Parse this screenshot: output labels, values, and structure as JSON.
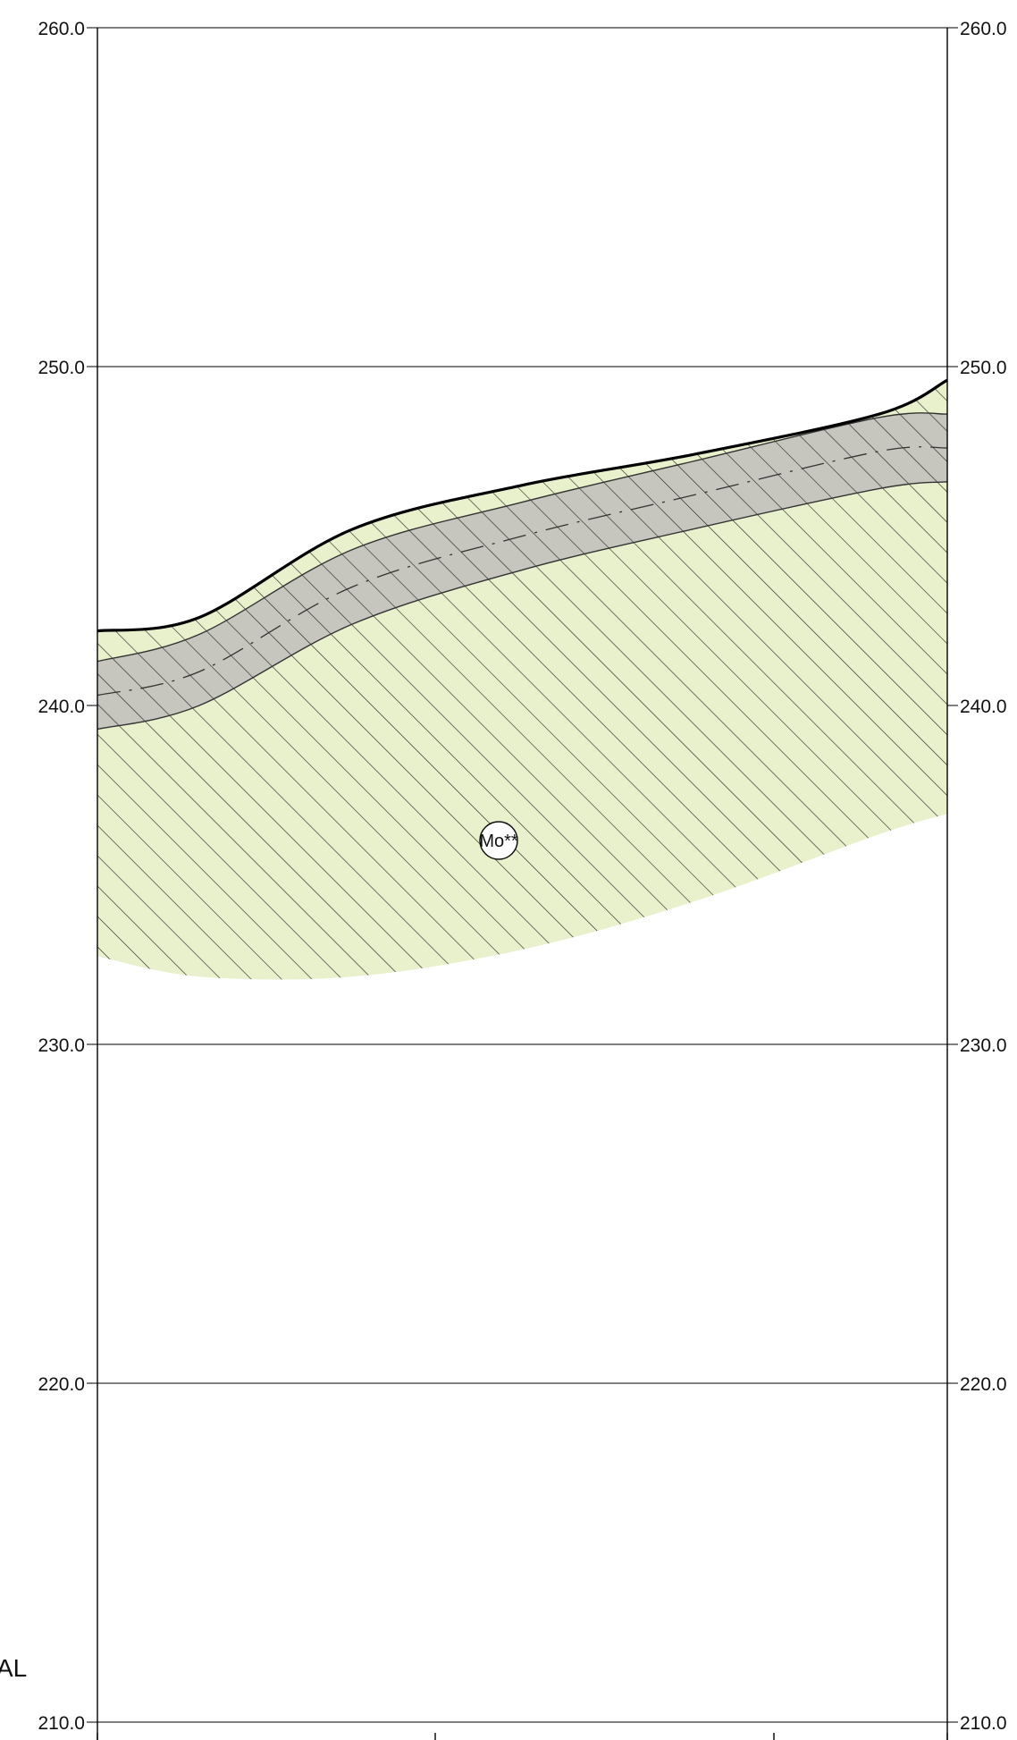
{
  "elevation_axis": {
    "ticks": [
      {
        "value": 260,
        "label": "260.0"
      },
      {
        "value": 250,
        "label": "250.0"
      },
      {
        "value": 240,
        "label": "240.0"
      },
      {
        "value": 230,
        "label": "230.0"
      },
      {
        "value": 220,
        "label": "220.0"
      },
      {
        "value": 210,
        "label": "210.0"
      }
    ],
    "range": [
      210,
      260
    ]
  },
  "profile": {
    "ground_surface_elevations": [
      242.2,
      242.6,
      245.2,
      246.5,
      247.4,
      248.6,
      249.6
    ],
    "band_upper_elevations": [
      241.3,
      242.1,
      244.6,
      246.0,
      247.2,
      248.5,
      248.6
    ],
    "band_centerline_elevations": [
      240.3,
      241.0,
      243.5,
      245.0,
      246.2,
      247.5,
      247.6
    ],
    "band_lower_elevations": [
      239.3,
      240.0,
      242.4,
      244.0,
      245.2,
      246.4,
      246.6
    ],
    "unit_base_elevations": [
      232.6,
      232.0,
      232.0,
      232.8,
      234.2,
      236.2,
      236.8
    ],
    "station_fractions": [
      0.0,
      0.12,
      0.3,
      0.5,
      0.7,
      0.92,
      1.0
    ]
  },
  "geologic_unit": {
    "label": "Mo**",
    "fill_color": "#e8f1cc",
    "hatch_color": "#1a1a1a"
  },
  "band": {
    "fill_color": "#c6c6be",
    "outline_color": "#333333"
  },
  "edge_label": "AL",
  "colors": {
    "grid": "#333333",
    "frame": "#000000",
    "surface_line": "#000000"
  }
}
